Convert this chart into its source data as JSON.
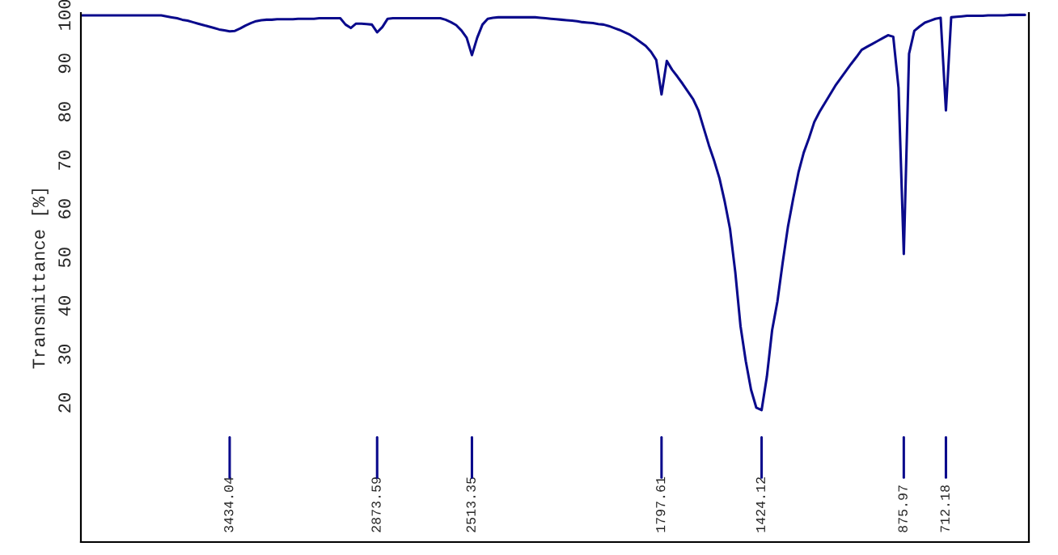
{
  "chart_data": {
    "type": "line",
    "ylabel": "Transmittance [%]",
    "categories": [
      null,
      null,
      null,
      null,
      null,
      null,
      null,
      null,
      null,
      null,
      null,
      null,
      null,
      null,
      null,
      null,
      null,
      null,
      null,
      null,
      null,
      null,
      null,
      null,
      null,
      null,
      null,
      null,
      "3434.04",
      null,
      null,
      null,
      null,
      null,
      null,
      null,
      null,
      null,
      null,
      null,
      null,
      null,
      null,
      null,
      null,
      null,
      null,
      null,
      null,
      null,
      null,
      null,
      null,
      null,
      null,
      null,
      "2873.59",
      null,
      null,
      null,
      null,
      null,
      null,
      null,
      null,
      null,
      null,
      null,
      null,
      null,
      null,
      null,
      null,
      null,
      "2513.35",
      null,
      null,
      null,
      null,
      null,
      null,
      null,
      null,
      null,
      null,
      null,
      null,
      null,
      null,
      null,
      null,
      null,
      null,
      null,
      null,
      null,
      null,
      null,
      null,
      null,
      null,
      null,
      null,
      null,
      null,
      null,
      null,
      null,
      null,
      null,
      "1797.61",
      null,
      null,
      null,
      null,
      null,
      null,
      null,
      null,
      null,
      null,
      null,
      null,
      null,
      null,
      null,
      null,
      null,
      null,
      "1424.12",
      null,
      null,
      null,
      null,
      null,
      null,
      null,
      null,
      null,
      null,
      null,
      null,
      null,
      null,
      null,
      null,
      null,
      null,
      null,
      null,
      null,
      null,
      null,
      null,
      null,
      null,
      "875.97",
      null,
      null,
      null,
      null,
      null,
      null,
      null,
      "712.18",
      null,
      null,
      null,
      null,
      null,
      null,
      null,
      null,
      null,
      null,
      null,
      null,
      null,
      null,
      null
    ],
    "ylim": [
      -8.7,
      100.4
    ],
    "yticks": [
      20,
      30,
      40,
      50,
      60,
      70,
      80,
      90,
      100
    ],
    "series": [
      {
        "color": "#0a0a8c",
        "values": [
          99.9,
          99.9,
          99.9,
          99.9,
          99.9,
          99.9,
          99.9,
          99.9,
          99.9,
          99.9,
          99.9,
          99.9,
          99.9,
          99.9,
          99.9,
          99.9,
          99.7,
          99.5,
          99.3,
          99.0,
          98.8,
          98.5,
          98.2,
          97.9,
          97.6,
          97.3,
          97.0,
          96.8,
          96.6,
          96.7,
          97.2,
          97.8,
          98.3,
          98.7,
          98.9,
          99.0,
          99.0,
          99.1,
          99.1,
          99.1,
          99.1,
          99.2,
          99.2,
          99.2,
          99.2,
          99.3,
          99.3,
          99.3,
          99.3,
          99.3,
          98.0,
          97.3,
          98.2,
          98.2,
          98.1,
          98.0,
          96.4,
          97.5,
          99.2,
          99.3,
          99.3,
          99.3,
          99.3,
          99.3,
          99.3,
          99.3,
          99.3,
          99.3,
          99.3,
          99.0,
          98.5,
          97.9,
          96.8,
          95.3,
          91.7,
          95.3,
          98.0,
          99.2,
          99.4,
          99.5,
          99.5,
          99.5,
          99.5,
          99.5,
          99.5,
          99.5,
          99.5,
          99.4,
          99.3,
          99.2,
          99.1,
          99.0,
          98.9,
          98.8,
          98.7,
          98.5,
          98.4,
          98.3,
          98.1,
          98.0,
          97.7,
          97.3,
          96.9,
          96.4,
          95.9,
          95.2,
          94.4,
          93.6,
          92.4,
          90.7,
          83.6,
          90.5,
          88.7,
          87.3,
          85.8,
          84.2,
          82.6,
          80.3,
          76.7,
          73.1,
          69.9,
          66.3,
          61.5,
          55.9,
          47.0,
          35.8,
          28.6,
          22.7,
          19.0,
          18.5,
          25.4,
          35.0,
          40.9,
          48.9,
          56.3,
          62.1,
          67.5,
          71.6,
          74.6,
          77.9,
          80.0,
          81.8,
          83.6,
          85.4,
          86.9,
          88.4,
          89.9,
          91.3,
          92.8,
          93.4,
          94.0,
          94.6,
          95.2,
          95.8,
          95.5,
          85.0,
          50.7,
          92.0,
          96.7,
          97.6,
          98.4,
          98.8,
          99.2,
          99.4,
          80.3,
          99.5,
          99.6,
          99.7,
          99.8,
          99.8,
          99.8,
          99.8,
          99.9,
          99.9,
          99.9,
          99.9,
          100,
          100,
          100,
          100
        ]
      }
    ]
  }
}
